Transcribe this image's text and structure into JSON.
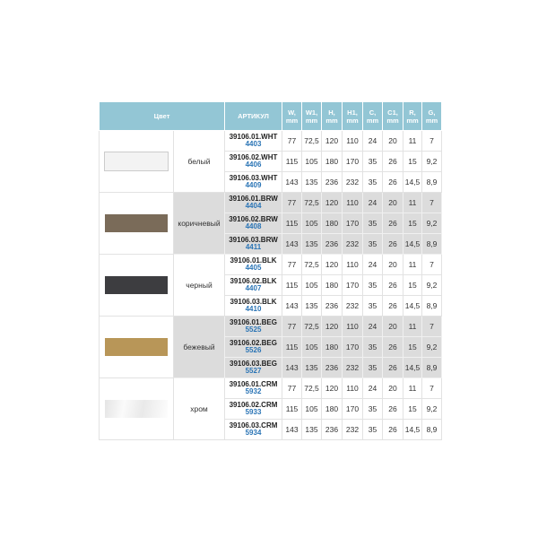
{
  "headers": {
    "color": "Цвет",
    "article": "АРТИКУЛ",
    "W": "W, mm",
    "W1": "W1, mm",
    "H": "H, mm",
    "H1": "H1, mm",
    "C": "C, mm",
    "C1": "C1, mm",
    "R": "R, mm",
    "G": "G, mm"
  },
  "groups": [
    {
      "name": "белый",
      "swatch": "#f3f3f3",
      "shaded": false,
      "rows": [
        {
          "article": "39106.01.WHT",
          "code": "4403",
          "vals": [
            "77",
            "72,5",
            "120",
            "110",
            "24",
            "20",
            "11",
            "7"
          ]
        },
        {
          "article": "39106.02.WHT",
          "code": "4406",
          "vals": [
            "115",
            "105",
            "180",
            "170",
            "35",
            "26",
            "15",
            "9,2"
          ]
        },
        {
          "article": "39106.03.WHT",
          "code": "4409",
          "vals": [
            "143",
            "135",
            "236",
            "232",
            "35",
            "26",
            "14,5",
            "8,9"
          ]
        }
      ]
    },
    {
      "name": "коричневый",
      "swatch": "#7a6b59",
      "shaded": true,
      "rows": [
        {
          "article": "39106.01.BRW",
          "code": "4404",
          "vals": [
            "77",
            "72,5",
            "120",
            "110",
            "24",
            "20",
            "11",
            "7"
          ]
        },
        {
          "article": "39106.02.BRW",
          "code": "4408",
          "vals": [
            "115",
            "105",
            "180",
            "170",
            "35",
            "26",
            "15",
            "9,2"
          ]
        },
        {
          "article": "39106.03.BRW",
          "code": "4411",
          "vals": [
            "143",
            "135",
            "236",
            "232",
            "35",
            "26",
            "14,5",
            "8,9"
          ]
        }
      ]
    },
    {
      "name": "черный",
      "swatch": "#3d3d40",
      "shaded": false,
      "rows": [
        {
          "article": "39106.01.BLK",
          "code": "4405",
          "vals": [
            "77",
            "72,5",
            "120",
            "110",
            "24",
            "20",
            "11",
            "7"
          ]
        },
        {
          "article": "39106.02.BLK",
          "code": "4407",
          "vals": [
            "115",
            "105",
            "180",
            "170",
            "35",
            "26",
            "15",
            "9,2"
          ]
        },
        {
          "article": "39106.03.BLK",
          "code": "4410",
          "vals": [
            "143",
            "135",
            "236",
            "232",
            "35",
            "26",
            "14,5",
            "8,9"
          ]
        }
      ]
    },
    {
      "name": "бежевый",
      "swatch": "#b89658",
      "shaded": true,
      "rows": [
        {
          "article": "39106.01.BEG",
          "code": "5525",
          "vals": [
            "77",
            "72,5",
            "120",
            "110",
            "24",
            "20",
            "11",
            "7"
          ]
        },
        {
          "article": "39106.02.BEG",
          "code": "5526",
          "vals": [
            "115",
            "105",
            "180",
            "170",
            "35",
            "26",
            "15",
            "9,2"
          ]
        },
        {
          "article": "39106.03.BEG",
          "code": "5527",
          "vals": [
            "143",
            "135",
            "236",
            "232",
            "35",
            "26",
            "14,5",
            "8,9"
          ]
        }
      ]
    },
    {
      "name": "хром",
      "swatch": "linear-gradient(100deg,#e4e4e4,#fafafa 30%,#e9e9e9 60%,#fdfdfd)",
      "shaded": false,
      "rows": [
        {
          "article": "39106.01.CRM",
          "code": "5932",
          "vals": [
            "77",
            "72,5",
            "120",
            "110",
            "24",
            "20",
            "11",
            "7"
          ]
        },
        {
          "article": "39106.02.CRM",
          "code": "5933",
          "vals": [
            "115",
            "105",
            "180",
            "170",
            "35",
            "26",
            "15",
            "9,2"
          ]
        },
        {
          "article": "39106.03.CRM",
          "code": "5934",
          "vals": [
            "143",
            "135",
            "236",
            "232",
            "35",
            "26",
            "14,5",
            "8,9"
          ]
        }
      ]
    }
  ]
}
